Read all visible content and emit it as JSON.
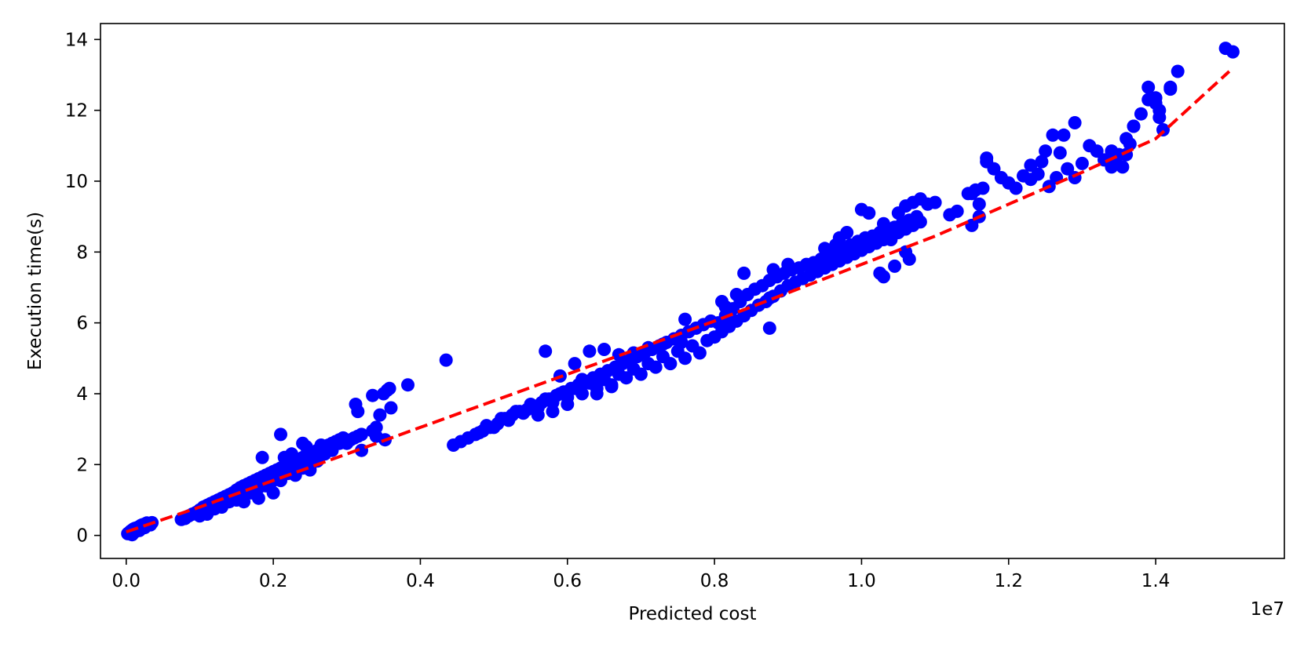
{
  "chart_data": {
    "type": "scatter",
    "title": "",
    "xlabel": "Predicted cost",
    "ylabel": "Execution time(s)",
    "x_offset_text": "1e7",
    "x_scale": 10000000,
    "xlim": [
      -0.035,
      1.575
    ],
    "ylim": [
      -0.65,
      14.45
    ],
    "x_ticks": [
      0.0,
      0.2,
      0.4,
      0.6,
      0.8,
      1.0,
      1.2,
      1.4
    ],
    "x_tick_labels": [
      "0.0",
      "0.2",
      "0.4",
      "0.6",
      "0.8",
      "1.0",
      "1.2",
      "1.4"
    ],
    "y_ticks": [
      0,
      2,
      4,
      6,
      8,
      10,
      12,
      14
    ],
    "y_tick_labels": [
      "0",
      "2",
      "4",
      "6",
      "8",
      "10",
      "12",
      "14"
    ],
    "grid": false,
    "legend": "none",
    "colors": {
      "points": "#0000ff",
      "trend": "#ff0000",
      "axes": "#000000"
    },
    "trend_line": {
      "style": "dashed",
      "x": [
        0.0,
        0.1,
        0.2,
        0.3,
        0.4,
        0.5,
        0.6,
        0.7,
        0.8,
        0.9,
        1.0,
        1.1,
        1.2,
        1.3,
        1.4,
        1.5
      ],
      "y": [
        0.1,
        0.8,
        1.55,
        2.3,
        3.05,
        3.8,
        4.55,
        5.3,
        6.05,
        6.85,
        7.65,
        8.45,
        9.35,
        10.25,
        11.2,
        13.1
      ]
    },
    "series": [
      {
        "x": [
          0.002,
          0.004,
          0.006,
          0.008,
          0.01,
          0.012,
          0.015,
          0.018,
          0.02,
          0.022,
          0.025,
          0.028,
          0.03,
          0.033,
          0.035,
          0.008,
          0.012,
          0.018,
          0.025,
          0.075,
          0.08,
          0.085,
          0.09,
          0.095,
          0.1,
          0.105,
          0.11,
          0.115,
          0.12,
          0.125,
          0.13,
          0.135,
          0.14,
          0.145,
          0.15,
          0.155,
          0.16,
          0.165,
          0.17,
          0.175,
          0.18,
          0.185,
          0.19,
          0.195,
          0.2,
          0.205,
          0.21,
          0.215,
          0.22,
          0.225,
          0.23,
          0.235,
          0.24,
          0.245,
          0.25,
          0.255,
          0.26,
          0.265,
          0.27,
          0.275,
          0.28,
          0.285,
          0.29,
          0.295,
          0.3,
          0.305,
          0.31,
          0.315,
          0.32,
          0.11,
          0.13,
          0.15,
          0.17,
          0.19,
          0.21,
          0.23,
          0.25,
          0.12,
          0.14,
          0.16,
          0.18,
          0.2,
          0.22,
          0.24,
          0.26,
          0.1,
          0.135,
          0.155,
          0.175,
          0.195,
          0.215,
          0.235,
          0.255,
          0.185,
          0.215,
          0.245,
          0.27,
          0.29,
          0.265,
          0.28,
          0.3,
          0.32,
          0.24,
          0.225,
          0.2,
          0.18,
          0.16,
          0.21,
          0.25,
          0.23,
          0.312,
          0.315,
          0.335,
          0.34,
          0.345,
          0.35,
          0.355,
          0.358,
          0.36,
          0.352,
          0.34,
          0.335,
          0.383,
          0.435,
          0.445,
          0.455,
          0.465,
          0.475,
          0.485,
          0.495,
          0.505,
          0.515,
          0.525,
          0.535,
          0.545,
          0.555,
          0.565,
          0.575,
          0.585,
          0.595,
          0.605,
          0.615,
          0.625,
          0.635,
          0.645,
          0.655,
          0.665,
          0.675,
          0.685,
          0.695,
          0.705,
          0.715,
          0.725,
          0.735,
          0.745,
          0.755,
          0.765,
          0.775,
          0.785,
          0.795,
          0.48,
          0.5,
          0.52,
          0.54,
          0.56,
          0.58,
          0.6,
          0.62,
          0.64,
          0.66,
          0.68,
          0.7,
          0.72,
          0.74,
          0.76,
          0.78,
          0.49,
          0.51,
          0.53,
          0.55,
          0.57,
          0.59,
          0.61,
          0.63,
          0.65,
          0.67,
          0.69,
          0.71,
          0.73,
          0.75,
          0.77,
          0.79,
          0.57,
          0.59,
          0.61,
          0.63,
          0.65,
          0.67,
          0.69,
          0.71,
          0.73,
          0.755,
          0.64,
          0.66,
          0.62,
          0.6,
          0.58,
          0.56,
          0.76,
          0.8,
          0.81,
          0.82,
          0.83,
          0.84,
          0.85,
          0.86,
          0.87,
          0.88,
          0.89,
          0.9,
          0.91,
          0.92,
          0.93,
          0.94,
          0.95,
          0.96,
          0.97,
          0.98,
          0.99,
          1.0,
          1.01,
          1.02,
          1.03,
          1.04,
          1.05,
          1.06,
          1.07,
          1.08,
          0.805,
          0.815,
          0.825,
          0.835,
          0.845,
          0.855,
          0.865,
          0.875,
          0.885,
          0.895,
          0.905,
          0.915,
          0.925,
          0.935,
          0.945,
          0.955,
          0.965,
          0.975,
          0.985,
          0.995,
          1.005,
          1.015,
          1.025,
          1.035,
          1.045,
          1.055,
          1.065,
          1.075,
          0.815,
          0.875,
          0.875,
          0.84,
          0.88,
          0.9,
          0.95,
          0.97,
          0.98,
          0.965,
          1.0,
          1.01,
          1.03,
          1.06,
          1.07,
          1.08,
          1.065,
          1.045,
          1.025,
          1.09,
          1.1,
          1.05,
          1.04,
          1.03,
          1.06,
          0.83,
          0.81,
          1.12,
          1.13,
          1.145,
          1.15,
          1.16,
          1.165,
          1.17,
          1.155,
          1.18,
          1.19,
          1.21,
          1.22,
          1.23,
          1.24,
          1.245,
          1.25,
          1.26,
          1.27,
          1.28,
          1.29,
          1.3,
          1.31,
          1.32,
          1.33,
          1.34,
          1.35,
          1.36,
          1.37,
          1.38,
          1.39,
          1.4,
          1.405,
          1.41,
          1.42,
          1.43,
          1.17,
          1.15,
          1.16,
          1.2,
          1.23,
          1.255,
          1.265,
          1.275,
          1.29,
          1.34,
          1.345,
          1.355,
          1.36,
          1.365,
          1.37,
          1.39,
          1.4,
          1.405,
          1.42,
          1.495,
          1.505
        ],
        "y": [
          0.05,
          0.08,
          0.12,
          0.15,
          0.18,
          0.2,
          0.22,
          0.25,
          0.28,
          0.3,
          0.32,
          0.35,
          0.33,
          0.3,
          0.36,
          0.02,
          0.1,
          0.14,
          0.22,
          0.45,
          0.48,
          0.55,
          0.6,
          0.65,
          0.72,
          0.8,
          0.85,
          0.9,
          0.95,
          1.0,
          1.05,
          1.1,
          1.15,
          1.2,
          1.28,
          1.35,
          1.4,
          1.45,
          1.5,
          1.55,
          1.6,
          1.65,
          1.7,
          1.75,
          1.8,
          1.85,
          1.9,
          1.95,
          2.0,
          2.05,
          2.1,
          2.15,
          2.2,
          2.25,
          2.3,
          2.35,
          2.4,
          2.45,
          2.5,
          2.55,
          2.6,
          2.65,
          2.7,
          2.75,
          2.65,
          2.7,
          2.75,
          2.8,
          2.85,
          0.6,
          0.8,
          1.0,
          1.2,
          1.4,
          1.55,
          1.75,
          1.95,
          0.75,
          0.95,
          1.15,
          1.35,
          1.55,
          1.75,
          1.9,
          2.1,
          0.55,
          1.05,
          1.25,
          1.45,
          1.65,
          1.85,
          2.05,
          2.2,
          2.2,
          2.2,
          2.5,
          2.3,
          2.6,
          2.55,
          2.4,
          2.6,
          2.4,
          2.6,
          2.3,
          1.2,
          1.05,
          0.95,
          2.85,
          1.85,
          1.7,
          3.7,
          3.5,
          3.95,
          2.8,
          3.4,
          4.0,
          4.1,
          4.15,
          3.6,
          2.7,
          3.05,
          2.95,
          4.25,
          4.95,
          2.55,
          2.65,
          2.75,
          2.85,
          2.95,
          3.05,
          3.15,
          3.3,
          3.4,
          3.5,
          3.55,
          3.65,
          3.75,
          3.85,
          3.95,
          4.05,
          4.15,
          4.25,
          4.35,
          4.45,
          4.55,
          4.65,
          4.75,
          4.85,
          4.95,
          5.05,
          5.15,
          5.25,
          5.35,
          5.45,
          5.55,
          5.65,
          5.75,
          5.85,
          5.95,
          6.05,
          2.9,
          3.05,
          3.25,
          3.45,
          3.6,
          3.75,
          3.9,
          4.0,
          4.15,
          4.25,
          4.45,
          4.55,
          4.75,
          4.85,
          5.0,
          5.15,
          3.1,
          3.3,
          3.5,
          3.7,
          3.85,
          4.0,
          4.15,
          4.3,
          4.4,
          4.55,
          4.7,
          4.85,
          5.05,
          5.2,
          5.35,
          5.5,
          5.2,
          4.5,
          4.85,
          5.2,
          5.25,
          5.1,
          5.15,
          5.3,
          5.4,
          5.45,
          4.0,
          4.2,
          4.4,
          3.7,
          3.5,
          3.4,
          6.1,
          5.6,
          5.75,
          5.9,
          6.05,
          6.2,
          6.35,
          6.5,
          6.6,
          6.75,
          6.9,
          7.05,
          7.15,
          7.25,
          7.35,
          7.45,
          7.55,
          7.65,
          7.75,
          7.85,
          7.95,
          8.05,
          8.15,
          8.25,
          8.35,
          8.45,
          8.55,
          8.65,
          8.75,
          8.85,
          6.0,
          6.2,
          6.4,
          6.6,
          6.8,
          6.95,
          7.05,
          7.2,
          7.3,
          7.4,
          7.5,
          7.55,
          7.65,
          7.7,
          7.8,
          7.9,
          8.0,
          8.1,
          8.2,
          8.3,
          8.4,
          8.45,
          8.55,
          8.6,
          8.7,
          8.8,
          8.9,
          9.0,
          6.45,
          6.7,
          5.85,
          7.4,
          7.5,
          7.65,
          8.1,
          8.4,
          8.55,
          8.2,
          9.2,
          9.1,
          8.8,
          9.3,
          9.4,
          9.5,
          7.8,
          7.6,
          7.4,
          9.35,
          9.4,
          9.1,
          8.35,
          7.3,
          8.0,
          6.8,
          6.6,
          9.05,
          9.15,
          9.65,
          8.75,
          9.0,
          9.8,
          10.55,
          9.75,
          10.35,
          10.1,
          9.8,
          10.15,
          10.05,
          10.2,
          10.55,
          10.85,
          11.3,
          10.8,
          10.35,
          10.1,
          10.5,
          11.0,
          10.85,
          10.6,
          10.4,
          10.75,
          11.2,
          11.55,
          11.9,
          12.3,
          12.35,
          11.8,
          11.45,
          12.6,
          13.1,
          10.65,
          9.65,
          9.35,
          9.95,
          10.45,
          9.85,
          10.1,
          11.3,
          11.65,
          10.85,
          10.5,
          10.4,
          10.75,
          11.05,
          11.55,
          12.65,
          12.2,
          12.0,
          12.65,
          13.75,
          13.65
        ]
      }
    ]
  }
}
